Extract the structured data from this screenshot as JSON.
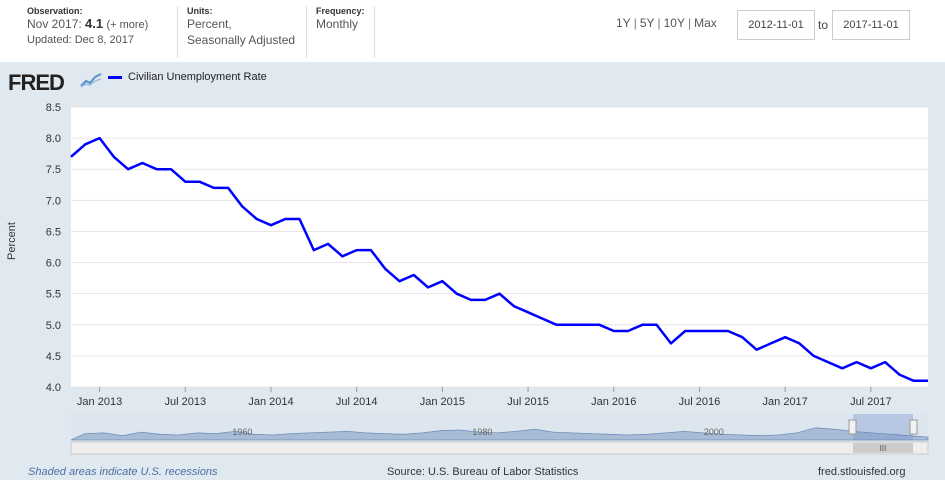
{
  "header": {
    "observation_label": "Observation:",
    "observation_date": "Nov 2017:",
    "observation_value": "4.1",
    "observation_more": "(+ more)",
    "updated": "Updated: Dec 8, 2017",
    "units_label": "Units:",
    "units_line1": "Percent,",
    "units_line2": "Seasonally Adjusted",
    "frequency_label": "Frequency:",
    "frequency_value": "Monthly",
    "range_buttons": [
      "1Y",
      "5Y",
      "10Y",
      "Max"
    ],
    "start_date": "2012-11-01",
    "to_label": "to",
    "end_date": "2017-11-01"
  },
  "logo": {
    "text": "FRED",
    "icon": "line-chart-icon"
  },
  "footer": {
    "recession_note": "Shaded areas indicate U.S. recessions",
    "source": "Source: U.S. Bureau of Labor Statistics",
    "site": "fred.stlouisfed.org"
  },
  "colors": {
    "series": "#0000ff",
    "background": "#e1e9f0",
    "plot": "#ffffff",
    "navigator": "#a9bcd6"
  },
  "chart_data": {
    "type": "line",
    "title": "",
    "xlabel": "",
    "ylabel": "Percent",
    "ylim": [
      4.0,
      8.5
    ],
    "yticks": [
      "8.5",
      "8.0",
      "7.5",
      "7.0",
      "6.5",
      "6.0",
      "5.5",
      "5.0",
      "4.5",
      "4.0"
    ],
    "xticks": [
      "Jan 2013",
      "Jul 2013",
      "Jan 2014",
      "Jul 2014",
      "Jan 2015",
      "Jul 2015",
      "Jan 2016",
      "Jul 2016",
      "Jan 2017",
      "Jul 2017"
    ],
    "legend_position": "top-left",
    "grid": true,
    "series": [
      {
        "name": "Civilian Unemployment Rate",
        "x": [
          "2012-11",
          "2012-12",
          "2013-01",
          "2013-02",
          "2013-03",
          "2013-04",
          "2013-05",
          "2013-06",
          "2013-07",
          "2013-08",
          "2013-09",
          "2013-10",
          "2013-11",
          "2013-12",
          "2014-01",
          "2014-02",
          "2014-03",
          "2014-04",
          "2014-05",
          "2014-06",
          "2014-07",
          "2014-08",
          "2014-09",
          "2014-10",
          "2014-11",
          "2014-12",
          "2015-01",
          "2015-02",
          "2015-03",
          "2015-04",
          "2015-05",
          "2015-06",
          "2015-07",
          "2015-08",
          "2015-09",
          "2015-10",
          "2015-11",
          "2015-12",
          "2016-01",
          "2016-02",
          "2016-03",
          "2016-04",
          "2016-05",
          "2016-06",
          "2016-07",
          "2016-08",
          "2016-09",
          "2016-10",
          "2016-11",
          "2016-12",
          "2017-01",
          "2017-02",
          "2017-03",
          "2017-04",
          "2017-05",
          "2017-06",
          "2017-07",
          "2017-08",
          "2017-09",
          "2017-10",
          "2017-11"
        ],
        "values": [
          7.7,
          7.9,
          8.0,
          7.7,
          7.5,
          7.6,
          7.5,
          7.5,
          7.3,
          7.3,
          7.2,
          7.2,
          6.9,
          6.7,
          6.6,
          6.7,
          6.7,
          6.2,
          6.3,
          6.1,
          6.2,
          6.2,
          5.9,
          5.7,
          5.8,
          5.6,
          5.7,
          5.5,
          5.4,
          5.4,
          5.5,
          5.3,
          5.2,
          5.1,
          5.0,
          5.0,
          5.0,
          5.0,
          4.9,
          4.9,
          5.0,
          5.0,
          4.7,
          4.9,
          4.9,
          4.9,
          4.9,
          4.8,
          4.6,
          4.7,
          4.8,
          4.7,
          4.5,
          4.4,
          4.3,
          4.4,
          4.3,
          4.4,
          4.2,
          4.1,
          4.1
        ]
      }
    ],
    "navigator_ticks": [
      "1960",
      "1980",
      "2000"
    ]
  }
}
